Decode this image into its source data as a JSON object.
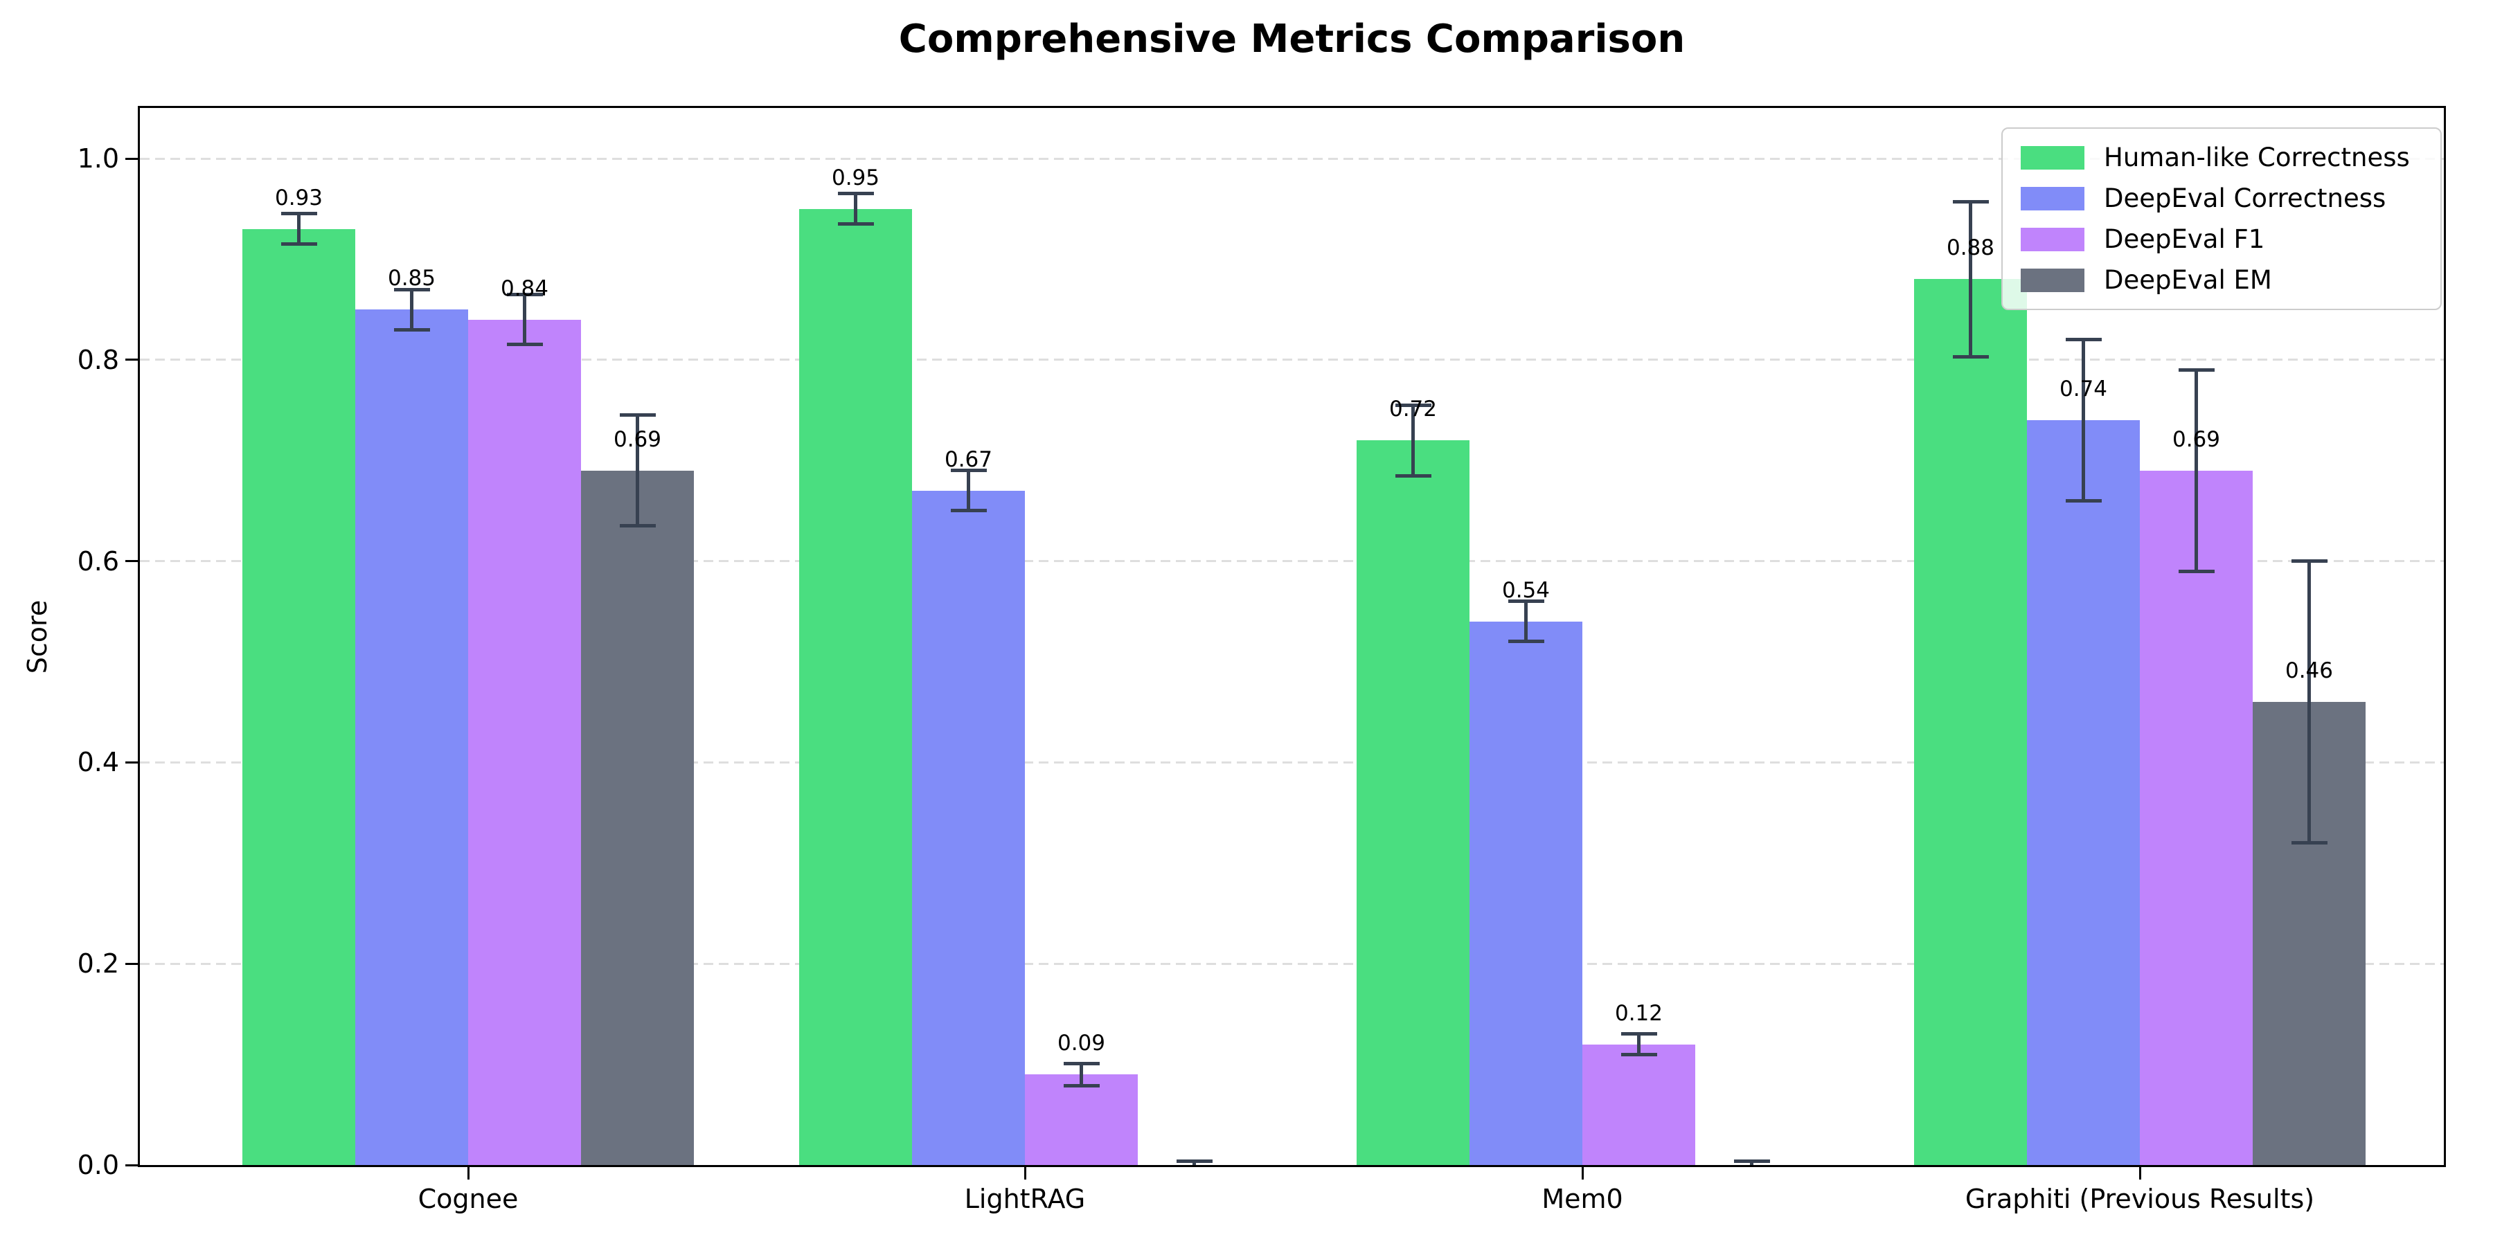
{
  "chart_data": {
    "type": "bar",
    "title": "Comprehensive Metrics Comparison",
    "xlabel": "",
    "ylabel": "Score",
    "ylim": [
      0.0,
      1.05
    ],
    "yticks": [
      "0.0",
      "0.2",
      "0.4",
      "0.6",
      "0.8",
      "1.0"
    ],
    "ytick_values": [
      0.0,
      0.2,
      0.4,
      0.6,
      0.8,
      1.0
    ],
    "grid": "horizontal-dashed",
    "legend_position": "upper-right",
    "categories": [
      "Cognee",
      "LightRAG",
      "Mem0",
      "Graphiti (Previous Results)"
    ],
    "series": [
      {
        "name": "Human-like Correctness",
        "color": "#4ade80",
        "values": [
          0.93,
          0.95,
          0.72,
          0.88
        ],
        "errors": [
          0.015,
          0.015,
          0.035,
          0.077
        ],
        "labels": [
          "0.93",
          "0.95",
          "0.72",
          "0.88"
        ]
      },
      {
        "name": "DeepEval Correctness",
        "color": "#818cf8",
        "values": [
          0.85,
          0.67,
          0.54,
          0.74
        ],
        "errors": [
          0.02,
          0.02,
          0.02,
          0.08
        ],
        "labels": [
          "0.85",
          "0.67",
          "0.54",
          "0.74"
        ]
      },
      {
        "name": "DeepEval F1",
        "color": "#c084fc",
        "values": [
          0.84,
          0.09,
          0.12,
          0.69
        ],
        "errors": [
          0.025,
          0.011,
          0.01,
          0.1
        ],
        "labels": [
          "0.84",
          "0.09",
          "0.12",
          "0.69"
        ]
      },
      {
        "name": "DeepEval EM",
        "color": "#6b7280",
        "values": [
          0.69,
          0.0,
          0.0,
          0.46
        ],
        "errors": [
          0.055,
          0.004,
          0.004,
          0.14
        ],
        "labels": [
          "0.69",
          "",
          "",
          "0.46"
        ]
      }
    ],
    "error_bar_color": "#374151",
    "grid_color": "#dedede",
    "axis_color": "#000000",
    "background_color": "#ffffff"
  }
}
